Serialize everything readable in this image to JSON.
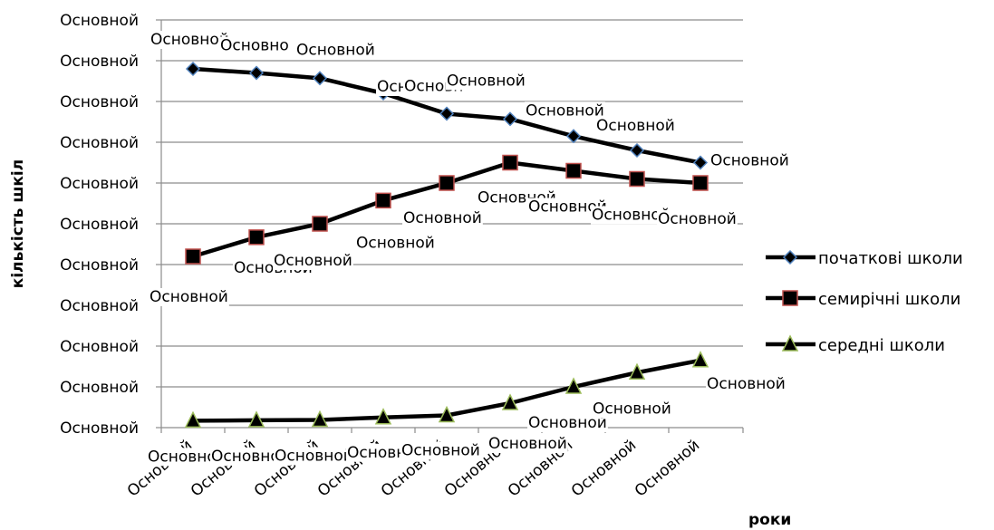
{
  "chart_data": {
    "type": "line",
    "title": "",
    "xlabel": "роки",
    "ylabel": "кількість шкіл",
    "y_tick_labels": [
      "Основной",
      "Основной",
      "Основной",
      "Основной",
      "Основной",
      "Основной",
      "Основной",
      "Основной",
      "Основной",
      "Основной",
      "Основной"
    ],
    "categories": [
      "Основной",
      "Основной",
      "Основной",
      "Основной",
      "Основной",
      "Основной",
      "Основной",
      "Основной",
      "Основной"
    ],
    "ylim": [
      0,
      10
    ],
    "grid": true,
    "legend": "right",
    "series": [
      {
        "name": "початкові школи",
        "marker": "diamond",
        "marker_fill": "#000000",
        "marker_stroke": "#4f81bd",
        "values": [
          8.8,
          8.7,
          8.57,
          8.2,
          7.7,
          7.57,
          7.15,
          6.8,
          6.5
        ],
        "data_labels": [
          "Основной",
          "Основно",
          "Основной",
          "Основной",
          "Основн",
          "Основной",
          "Основной",
          "Основной",
          "Основной"
        ]
      },
      {
        "name": "семирічні школи",
        "marker": "square",
        "marker_fill": "#000000",
        "marker_stroke": "#c0504d",
        "values": [
          4.2,
          4.67,
          5.0,
          5.57,
          6.0,
          6.5,
          6.3,
          6.1,
          6.0
        ],
        "data_labels": [
          "Основной",
          "Основной",
          "Основной",
          "Основной",
          "Основной",
          "Основной",
          "Основной",
          "Основной",
          "Основной"
        ]
      },
      {
        "name": "середні школи",
        "marker": "triangle",
        "marker_fill": "#000000",
        "marker_stroke": "#9bbb59",
        "values": [
          0.17,
          0.18,
          0.19,
          0.25,
          0.3,
          0.6,
          1.0,
          1.35,
          1.65
        ],
        "data_labels": [
          "Основной",
          "Основной",
          "Основной",
          "Основной",
          "Основной",
          "Основной",
          "Основной",
          "Основной",
          "Основной"
        ]
      }
    ]
  }
}
